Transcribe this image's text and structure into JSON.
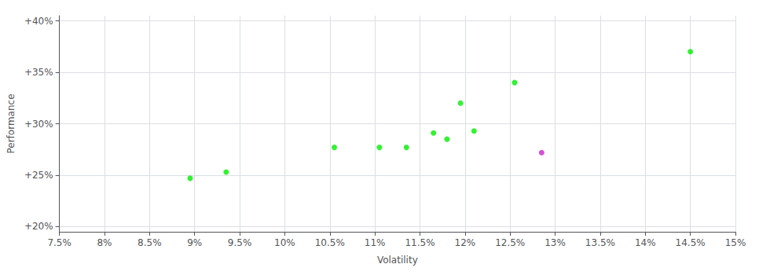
{
  "chart_data": {
    "type": "scatter",
    "xlabel": "Volatility",
    "ylabel": "Performance",
    "series": [
      {
        "color": "#00ee00",
        "x": [
          0.0895,
          0.0935,
          0.1055,
          0.1105,
          0.1135,
          0.1165,
          0.118,
          0.1195,
          0.121,
          0.1255,
          0.145
        ],
        "values": [
          0.247,
          0.253,
          0.277,
          0.277,
          0.277,
          0.291,
          0.285,
          0.32,
          0.293,
          0.34,
          0.37
        ]
      },
      {
        "color": "#cc22cc",
        "x": [
          0.1285
        ],
        "values": [
          0.272
        ]
      }
    ],
    "xlim": [
      0.075,
      0.15
    ],
    "ylim": [
      0.195,
      0.405
    ],
    "xticks": [
      {
        "value": 0.075,
        "label": "7.5%"
      },
      {
        "value": 0.08,
        "label": "8%"
      },
      {
        "value": 0.085,
        "label": "8.5%"
      },
      {
        "value": 0.09,
        "label": "9%"
      },
      {
        "value": 0.095,
        "label": "9.5%"
      },
      {
        "value": 0.1,
        "label": "10%"
      },
      {
        "value": 0.105,
        "label": "10.5%"
      },
      {
        "value": 0.11,
        "label": "11%"
      },
      {
        "value": 0.115,
        "label": "11.5%"
      },
      {
        "value": 0.12,
        "label": "12%"
      },
      {
        "value": 0.125,
        "label": "12.5%"
      },
      {
        "value": 0.13,
        "label": "13%"
      },
      {
        "value": 0.135,
        "label": "13.5%"
      },
      {
        "value": 0.14,
        "label": "14%"
      },
      {
        "value": 0.145,
        "label": "14.5%"
      },
      {
        "value": 0.15,
        "label": "15%"
      }
    ],
    "yticks": [
      {
        "value": 0.2,
        "label": "+20%"
      },
      {
        "value": 0.25,
        "label": "+25%"
      },
      {
        "value": 0.3,
        "label": "+30%"
      },
      {
        "value": 0.35,
        "label": "+35%"
      },
      {
        "value": 0.4,
        "label": "+40%"
      }
    ],
    "grid": true
  }
}
